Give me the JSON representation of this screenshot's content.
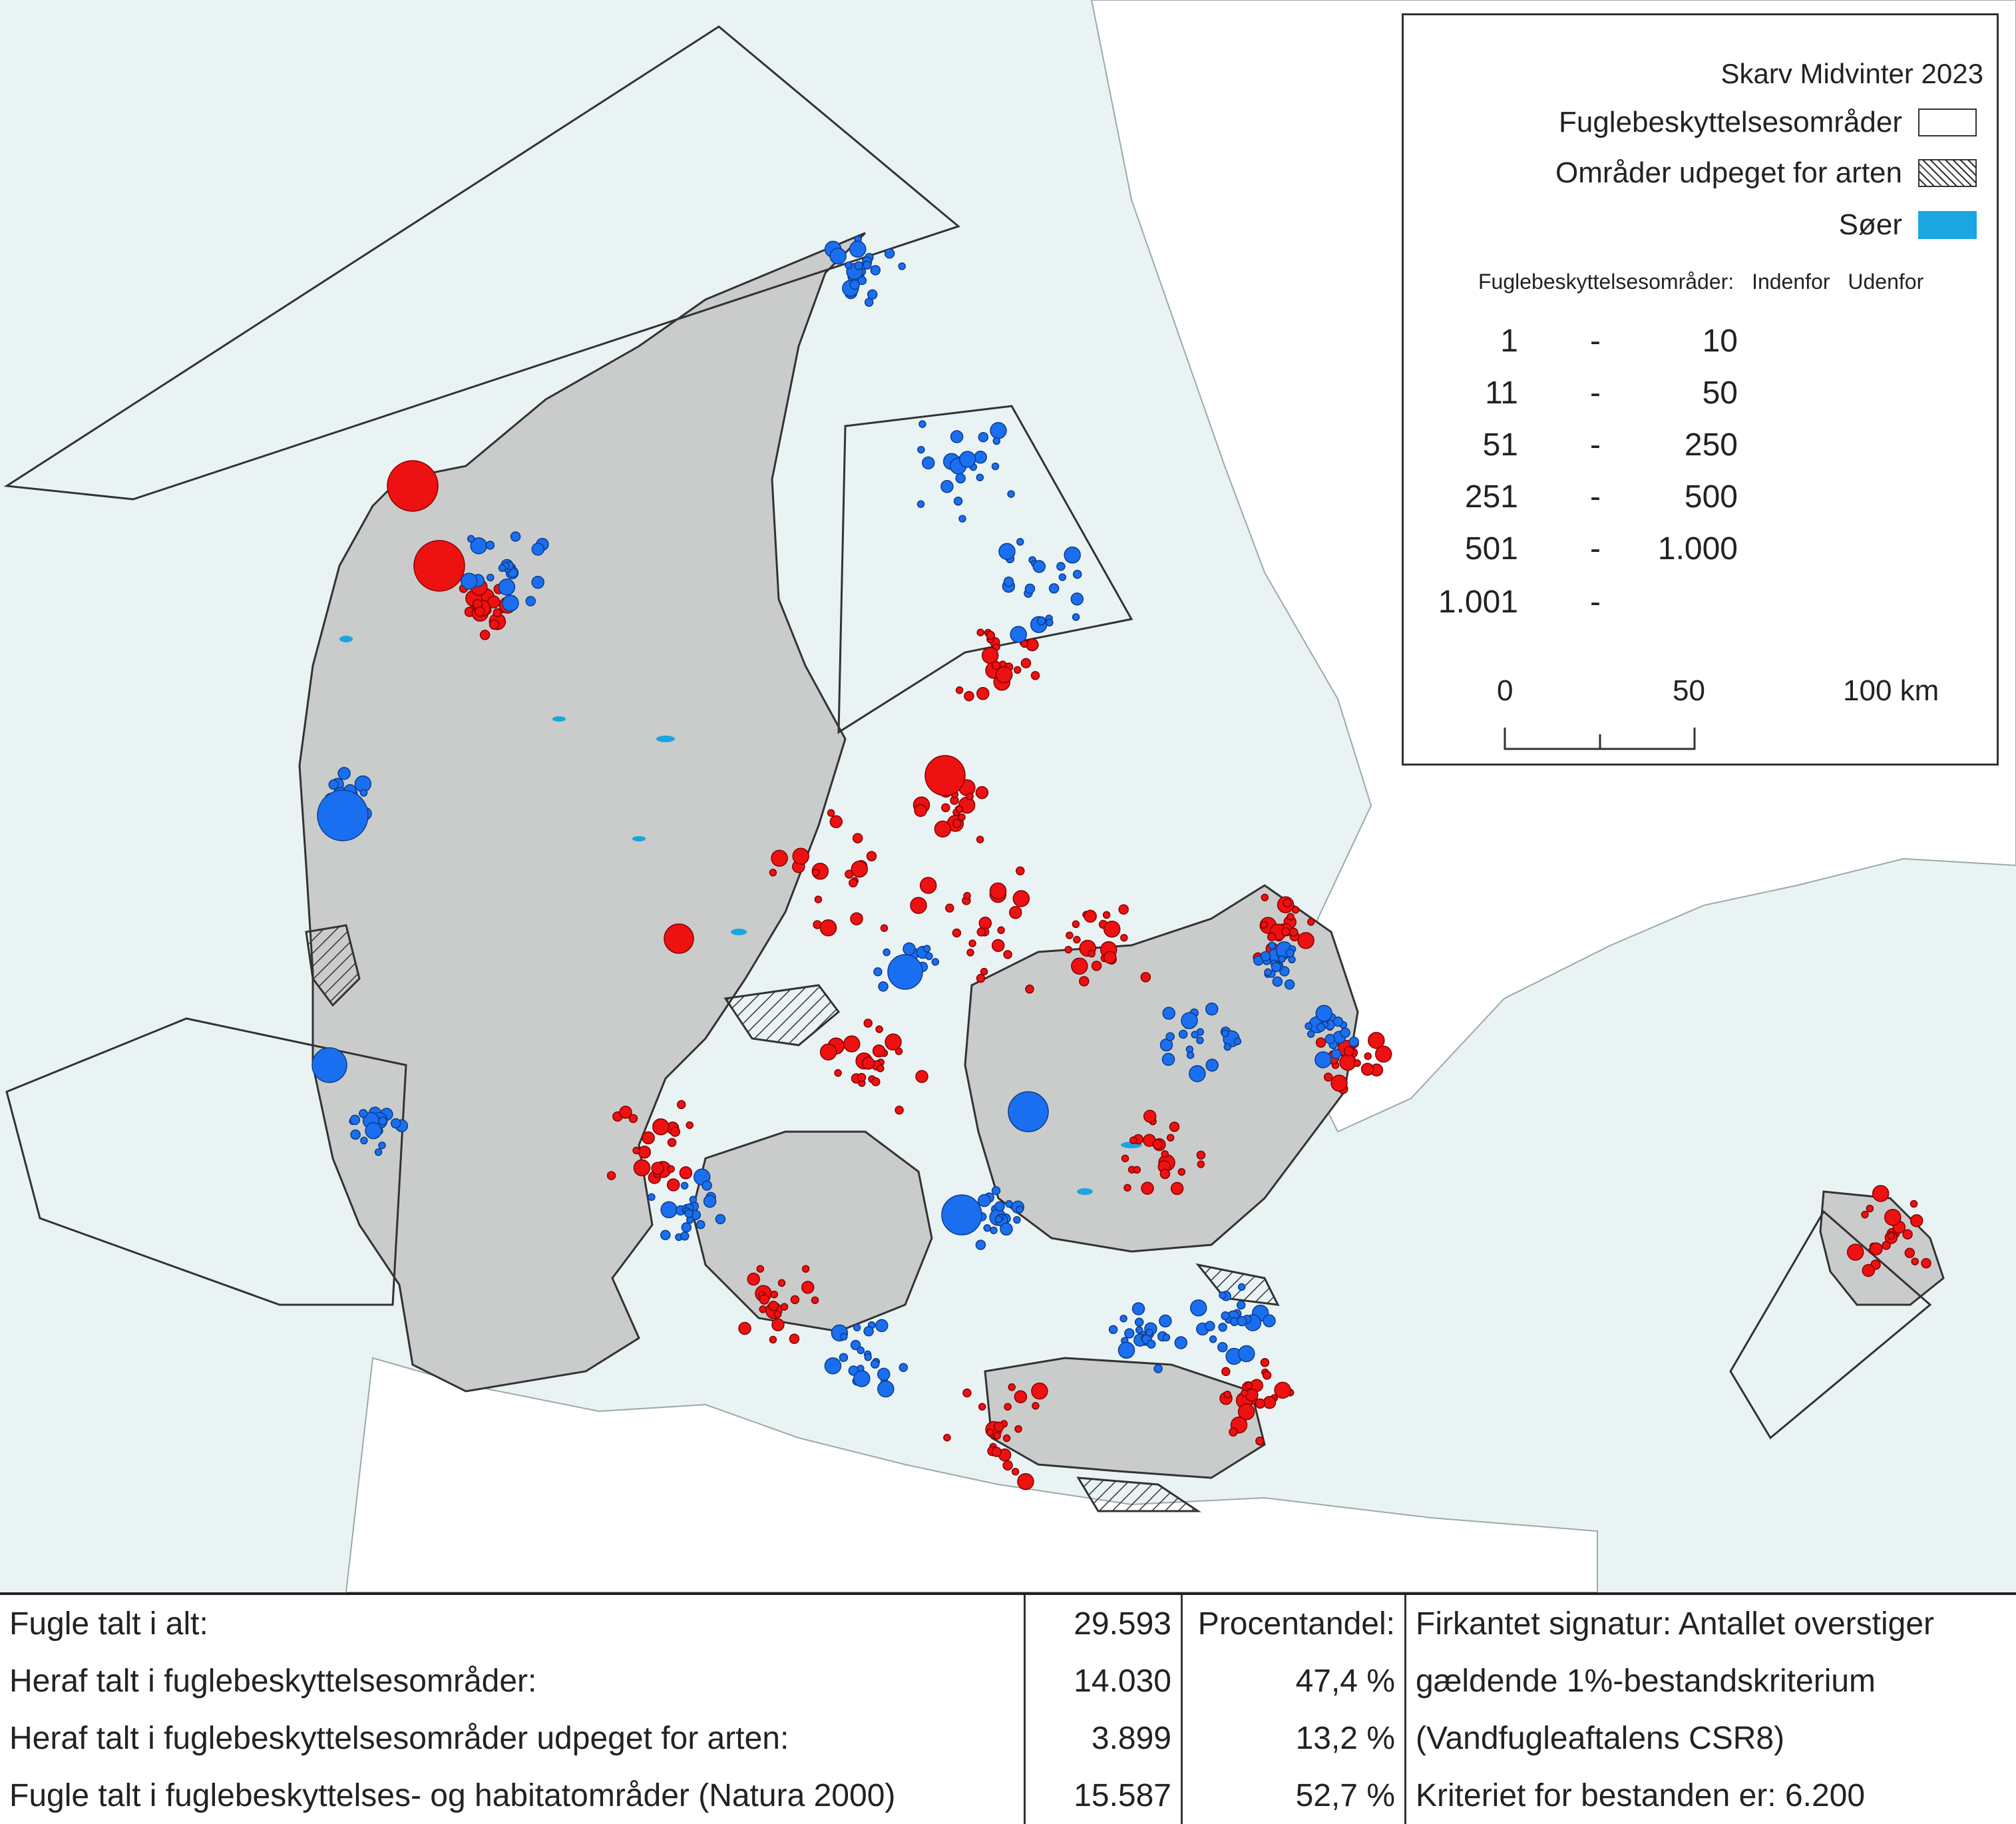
{
  "legend": {
    "title": "Skarv Midvinter 2023",
    "items": [
      {
        "label": "Fuglebeskyttelsesområder",
        "swatch": "white"
      },
      {
        "label": "Områder udpeget for arten",
        "swatch": "hatch"
      },
      {
        "label": "Søer",
        "swatch": "lake",
        "color": "#1aa6e0"
      }
    ],
    "header_prefix": "Fuglebeskyttelsesområder:",
    "header_inside": "Indenfor",
    "header_outside": "Udenfor",
    "classes": [
      {
        "from": "1",
        "sep": "-",
        "to": "10"
      },
      {
        "from": "11",
        "sep": "-",
        "to": "50"
      },
      {
        "from": "51",
        "sep": "-",
        "to": "250"
      },
      {
        "from": "251",
        "sep": "-",
        "to": "500"
      },
      {
        "from": "501",
        "sep": "-",
        "to": "1.000"
      },
      {
        "from": "1.001",
        "sep": "-",
        "to": ""
      }
    ],
    "scale_labels": [
      "0",
      "50",
      "100 km"
    ],
    "color_inside": "#1a6ff0",
    "color_outside": "#ee1111"
  },
  "stats": {
    "rows": [
      {
        "label": "Fugle talt i alt:",
        "value": "29.593",
        "pct": "Procentandel:",
        "note": "Firkantet signatur: Antallet overstiger"
      },
      {
        "label": "Heraf talt i fuglebeskyttelsesområder:",
        "value": "14.030",
        "pct": "47,4 %",
        "note": "gældende 1%-bestandskriterium"
      },
      {
        "label": "Heraf talt i fuglebeskyttelsesområder udpeget for arten:",
        "value": "3.899",
        "pct": "13,2 %",
        "note": "(Vandfugleaftalens CSR8)"
      },
      {
        "label": "Fugle talt i fuglebeskyttelses- og habitatområder (Natura 2000)",
        "value": "15.587",
        "pct": "52,7 %",
        "note": "Kriteriet for bestanden er: 6.200"
      }
    ]
  }
}
